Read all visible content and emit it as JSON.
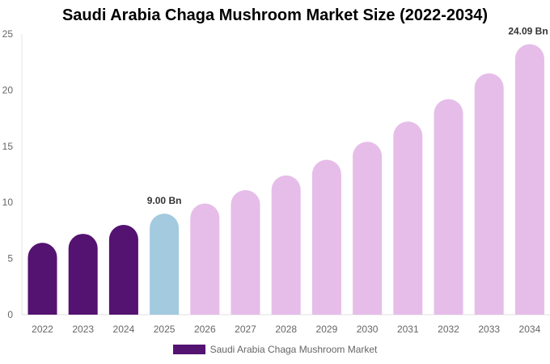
{
  "chart_data": {
    "type": "bar",
    "title": "Saudi Arabia Chaga Mushroom Market Size (2022-2034)",
    "categories": [
      "2022",
      "2023",
      "2024",
      "2025",
      "2026",
      "2027",
      "2028",
      "2029",
      "2030",
      "2031",
      "2032",
      "2033",
      "2034"
    ],
    "series": [
      {
        "name": "Saudi Arabia Chaga Mushroom Market",
        "values": [
          6.4,
          7.2,
          8.0,
          9.0,
          9.9,
          11.1,
          12.4,
          13.8,
          15.4,
          17.2,
          19.2,
          21.5,
          24.09
        ]
      }
    ],
    "data_labels": [
      {
        "category": "2025",
        "text": "9.00 Bn"
      },
      {
        "category": "2034",
        "text": "24.09 Bn"
      }
    ],
    "ylim": [
      0,
      25
    ],
    "yticks": [
      0,
      5,
      10,
      15,
      20,
      25
    ],
    "xlabel": "",
    "ylabel": "",
    "grid": false,
    "legend_position": "bottom",
    "colors": {
      "historical": "#541271",
      "current": "#a3cadf",
      "forecast": "#e6bde9"
    }
  }
}
